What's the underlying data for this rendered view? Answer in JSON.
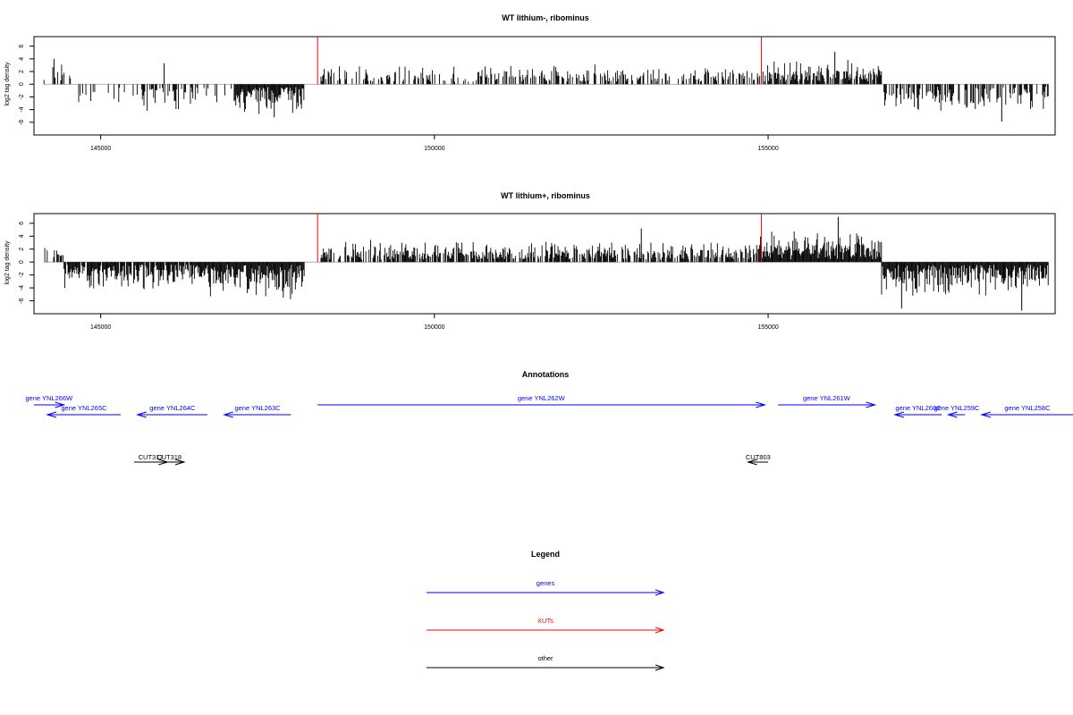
{
  "chart_data": [
    {
      "type": "bar",
      "title": "WT lithium-, ribominus",
      "ylabel": "log2 tag density",
      "xlim": [
        144000,
        159300
      ],
      "ylim": [
        -8,
        7.5
      ],
      "xticks": [
        145000,
        150000,
        155000
      ],
      "xtick_labels": [
        "145000",
        "150000",
        "155000"
      ],
      "yticks": [
        -6,
        -4,
        -2,
        0,
        2,
        4,
        6
      ],
      "ytick_labels": [
        "-6",
        "-4",
        "-2",
        "0",
        "2",
        "4",
        "6"
      ],
      "red_markers": [
        148250,
        154900
      ],
      "segments": [
        {
          "from": 144150,
          "to": 144550,
          "sign": 1,
          "amp": 3.0,
          "density": 0.3
        },
        {
          "from": 144550,
          "to": 145600,
          "sign": -1,
          "amp": 2.5,
          "density": 0.2
        },
        {
          "from": 145600,
          "to": 146500,
          "sign": -1,
          "amp": 3.5,
          "density": 0.5
        },
        {
          "from": 146500,
          "to": 147000,
          "sign": -1,
          "amp": 2.5,
          "density": 0.15
        },
        {
          "from": 147000,
          "to": 148050,
          "sign": -1,
          "amp": 4.0,
          "density": 1.0
        },
        {
          "from": 148300,
          "to": 154850,
          "sign": 1,
          "amp": 2.4,
          "density": 0.45
        },
        {
          "from": 154850,
          "to": 156700,
          "sign": 1,
          "amp": 3.0,
          "density": 0.8
        },
        {
          "from": 156700,
          "to": 159200,
          "sign": -1,
          "amp": 3.3,
          "density": 0.55
        }
      ],
      "spikes": [
        [
          145950,
          3.3
        ],
        [
          156000,
          5.1
        ],
        [
          144300,
          4.0
        ],
        [
          158500,
          -5.9
        ],
        [
          147600,
          -5.2
        ]
      ]
    },
    {
      "type": "bar",
      "title": "WT lithium+, ribominus",
      "ylabel": "log2 tag density",
      "xlim": [
        144000,
        159300
      ],
      "ylim": [
        -8,
        7.5
      ],
      "xticks": [
        145000,
        150000,
        155000
      ],
      "xtick_labels": [
        "145000",
        "150000",
        "155000"
      ],
      "yticks": [
        -6,
        -4,
        -2,
        0,
        2,
        4,
        6
      ],
      "ytick_labels": [
        "-6",
        "-4",
        "-2",
        "0",
        "2",
        "4",
        "6"
      ],
      "red_markers": [
        148250,
        154900
      ],
      "segments": [
        {
          "from": 144150,
          "to": 144450,
          "sign": 1,
          "amp": 2.5,
          "density": 0.5
        },
        {
          "from": 144450,
          "to": 146500,
          "sign": -1,
          "amp": 3.5,
          "density": 0.9
        },
        {
          "from": 146500,
          "to": 148050,
          "sign": -1,
          "amp": 4.8,
          "density": 1.0
        },
        {
          "from": 148300,
          "to": 154850,
          "sign": 1,
          "amp": 2.6,
          "density": 0.7
        },
        {
          "from": 154850,
          "to": 156700,
          "sign": 1,
          "amp": 3.8,
          "density": 1.0
        },
        {
          "from": 156700,
          "to": 159200,
          "sign": -1,
          "amp": 4.2,
          "density": 1.0
        }
      ],
      "spikes": [
        [
          156050,
          7.0
        ],
        [
          153100,
          5.2
        ],
        [
          157000,
          -7.2
        ],
        [
          158800,
          -7.5
        ]
      ]
    }
  ],
  "annotations": {
    "title": "Annotations",
    "genes": [
      {
        "label": "gene YNL266W",
        "start": 143800,
        "end": 144450,
        "dir": "right",
        "row": 0
      },
      {
        "label": "gene YNL265C",
        "start": 144200,
        "end": 145300,
        "dir": "left",
        "row": 1
      },
      {
        "label": "gene YNL264C",
        "start": 145550,
        "end": 146600,
        "dir": "left",
        "row": 1
      },
      {
        "label": "gene YNL263C",
        "start": 146850,
        "end": 147850,
        "dir": "left",
        "row": 1
      },
      {
        "label": "gene YNL262W",
        "start": 148250,
        "end": 154950,
        "dir": "right",
        "row": 0
      },
      {
        "label": "gene YNL261W",
        "start": 155150,
        "end": 156600,
        "dir": "right",
        "row": 0
      },
      {
        "label": "gene YNL260C",
        "start": 156900,
        "end": 157600,
        "dir": "left",
        "row": 1
      },
      {
        "label": "gene YNL259C",
        "start": 157700,
        "end": 157950,
        "dir": "left",
        "row": 1
      },
      {
        "label": "gene YNL258C",
        "start": 158200,
        "end": 159600,
        "dir": "left",
        "row": 1
      }
    ],
    "others": [
      {
        "label": "CUT317",
        "start": 145500,
        "end": 146000,
        "dir": "right",
        "row": 0
      },
      {
        "label": "CUT318",
        "start": 145800,
        "end": 146250,
        "dir": "right",
        "row": 0
      },
      {
        "label": "CUT803",
        "start": 154700,
        "end": 155000,
        "dir": "left",
        "row": 0
      }
    ]
  },
  "legend": {
    "title": "Legend",
    "items": [
      {
        "label": "genes",
        "color": "#0000ff"
      },
      {
        "label": "XUTs",
        "color": "#ff0000"
      },
      {
        "label": "other",
        "color": "#000000"
      }
    ]
  },
  "colors": {
    "bar": "#000000",
    "marker": "#ff0000",
    "gene": "#0000ff",
    "xut": "#ff0000",
    "other": "#000000",
    "zero_line": "#9a9a9a"
  }
}
